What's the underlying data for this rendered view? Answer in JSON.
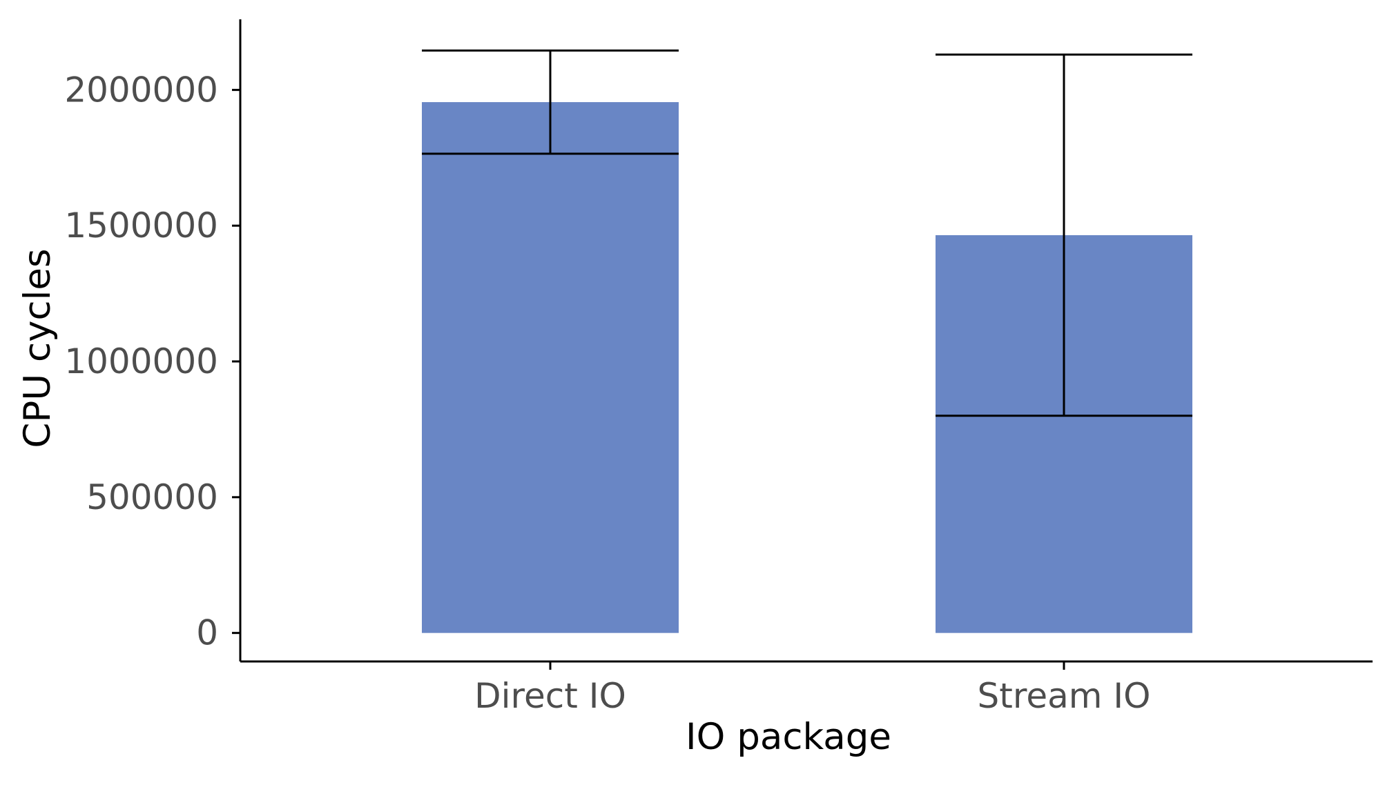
{
  "chart_data": {
    "type": "bar",
    "categories": [
      "Direct IO",
      "Stream IO"
    ],
    "values": [
      1955000,
      1465000
    ],
    "error_bars": [
      {
        "lower": 1765000,
        "upper": 2145000
      },
      {
        "lower": 800000,
        "upper": 2130000
      }
    ],
    "xlabel": "IO package",
    "ylabel": "CPU cycles",
    "ylim": [
      -105000,
      2260000
    ],
    "yticks": [
      0,
      500000,
      1000000,
      1500000,
      2000000
    ],
    "ytick_labels": [
      "0",
      "500000",
      "1000000",
      "1500000",
      "2000000"
    ],
    "grid": false,
    "legend": "none",
    "colors": {
      "bar": "#6986c5",
      "axis": "#000000",
      "tick_label": "#4d4d4d"
    }
  }
}
